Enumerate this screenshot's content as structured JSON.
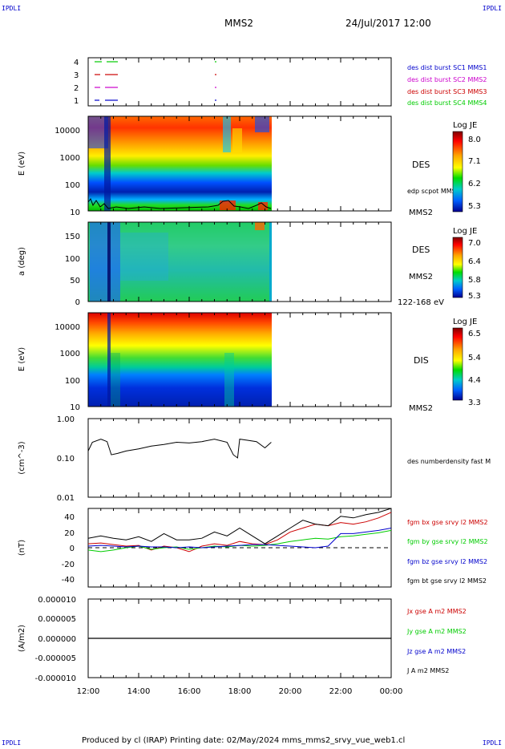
{
  "header": {
    "corner_tl": "IPDLI",
    "corner_tr": "IPDLI",
    "corner_bl": "IPDLI",
    "corner_br": "IPDLI",
    "title": "MMS2",
    "date": "24/Jul/2017 12:00"
  },
  "footer": {
    "text": "Produced by cl (IRAP)   Printing date: 02/May/2024   mms_mms2_srvy_vue_web1.cl"
  },
  "x_axis": {
    "ticks": [
      "12:00",
      "14:00",
      "16:00",
      "18:00",
      "20:00",
      "22:00",
      "00:00"
    ]
  },
  "colors": {
    "red": "#cc0000",
    "green": "#00cc00",
    "blue": "#0000cc",
    "magenta": "#cc00cc",
    "black": "#000000"
  },
  "chart_data": [
    {
      "type": "table",
      "panel": "availability",
      "y_ticks": [
        "4",
        "3",
        "2",
        "1"
      ],
      "legend": [
        {
          "label": "des dist burst SC1 MMS1",
          "color": "#0000cc"
        },
        {
          "label": "des dist burst SC2 MMS2",
          "color": "#cc00cc"
        },
        {
          "label": "des dist burst SC3 MMS3",
          "color": "#cc0000"
        },
        {
          "label": "des dist burst SC4 MMS4",
          "color": "#00cc00"
        }
      ]
    },
    {
      "type": "heatmap",
      "panel": "des-energy",
      "ylabel": "E (eV)",
      "y_ticks": [
        "10000",
        "1000",
        "100",
        "10"
      ],
      "label": "DES",
      "sublabel": "MMS2",
      "overlay_label": "edp scpot MMS2",
      "colorbar": {
        "title": "Log JE",
        "ticks": [
          "8.0",
          "7.1",
          "6.2",
          "5.3"
        ]
      },
      "data_end": "19:15"
    },
    {
      "type": "heatmap",
      "panel": "des-pitch",
      "ylabel": "a (deg)",
      "y_ticks": [
        "150",
        "100",
        "50",
        "0"
      ],
      "label": "DES",
      "sublabel": "MMS2",
      "energy_band": "122-168 eV",
      "colorbar": {
        "title": "Log JE",
        "ticks": [
          "7.0",
          "6.4",
          "5.8",
          "5.3"
        ]
      },
      "data_end": "19:15"
    },
    {
      "type": "heatmap",
      "panel": "dis-energy",
      "ylabel": "E (eV)",
      "y_ticks": [
        "10000",
        "1000",
        "100",
        "10"
      ],
      "label": "DIS",
      "sublabel": "MMS2",
      "colorbar": {
        "title": "Log JE",
        "ticks": [
          "6.5",
          "5.4",
          "4.4",
          "3.3"
        ]
      },
      "data_end": "19:15"
    },
    {
      "type": "line",
      "panel": "density",
      "ylabel": "(cm^-3)",
      "y_ticks": [
        "1.00",
        "0.10",
        "0.01"
      ],
      "ylim": [
        0.01,
        1.0
      ],
      "scale": "log",
      "series": [
        {
          "name": "des numberdensity fast M",
          "color": "#000000",
          "x": [
            "12:00",
            "12:10",
            "12:30",
            "12:45",
            "12:55",
            "13:10",
            "13:30",
            "14:00",
            "14:30",
            "15:00",
            "15:30",
            "16:00",
            "16:30",
            "17:00",
            "17:30",
            "17:45",
            "17:55",
            "18:00",
            "18:20",
            "18:40",
            "19:00",
            "19:15"
          ],
          "y": [
            0.15,
            0.25,
            0.3,
            0.26,
            0.12,
            0.13,
            0.15,
            0.17,
            0.2,
            0.22,
            0.25,
            0.24,
            0.26,
            0.3,
            0.25,
            0.12,
            0.1,
            0.3,
            0.28,
            0.26,
            0.18,
            0.25
          ]
        }
      ]
    },
    {
      "type": "line",
      "panel": "fgm",
      "ylabel": "(nT)",
      "y_ticks": [
        "40",
        "20",
        "0",
        "-20",
        "-40"
      ],
      "ylim": [
        -50,
        50
      ],
      "series": [
        {
          "name": "fgm bx gse srvy l2 MMS2",
          "color": "#cc0000",
          "x": [
            "12:00",
            "12:30",
            "13:00",
            "13:30",
            "14:00",
            "14:30",
            "15:00",
            "15:30",
            "16:00",
            "16:30",
            "17:00",
            "17:30",
            "18:00",
            "18:30",
            "19:00",
            "19:30",
            "20:00",
            "20:30",
            "21:00",
            "21:30",
            "22:00",
            "22:30",
            "23:00",
            "23:30",
            "00:00"
          ],
          "y": [
            5,
            6,
            4,
            2,
            3,
            -3,
            2,
            0,
            -5,
            2,
            5,
            3,
            8,
            5,
            4,
            10,
            20,
            25,
            30,
            28,
            32,
            30,
            33,
            38,
            45
          ]
        },
        {
          "name": "fgm by gse srvy l2 MMS2",
          "color": "#00cc00",
          "x": [
            "12:00",
            "12:30",
            "13:00",
            "13:30",
            "14:00",
            "14:30",
            "15:00",
            "15:30",
            "16:00",
            "16:30",
            "17:00",
            "17:30",
            "18:00",
            "18:30",
            "19:00",
            "19:30",
            "20:00",
            "20:30",
            "21:00",
            "21:30",
            "22:00",
            "22:30",
            "23:00",
            "23:30",
            "00:00"
          ],
          "y": [
            -3,
            -5,
            -3,
            0,
            2,
            -2,
            0,
            1,
            -2,
            0,
            2,
            1,
            3,
            2,
            3,
            5,
            8,
            10,
            12,
            11,
            14,
            15,
            17,
            19,
            22
          ]
        },
        {
          "name": "fgm bz gse srvy l2 MMS2",
          "color": "#0000cc",
          "x": [
            "12:00",
            "12:30",
            "13:00",
            "13:30",
            "14:00",
            "14:30",
            "15:00",
            "15:30",
            "16:00",
            "16:30",
            "17:00",
            "17:30",
            "18:00",
            "18:30",
            "19:00",
            "19:30",
            "20:00",
            "20:30",
            "21:00",
            "21:30",
            "22:00",
            "22:30",
            "23:00",
            "23:30",
            "00:00"
          ],
          "y": [
            2,
            3,
            2,
            1,
            2,
            1,
            1,
            0,
            1,
            0,
            1,
            2,
            3,
            4,
            4,
            3,
            2,
            1,
            0,
            2,
            18,
            18,
            20,
            22,
            25
          ]
        },
        {
          "name": "fgm bt gse srvy l2 MMS2",
          "color": "#000000",
          "x": [
            "12:00",
            "12:30",
            "13:00",
            "13:30",
            "14:00",
            "14:30",
            "15:00",
            "15:30",
            "16:00",
            "16:30",
            "17:00",
            "17:30",
            "18:00",
            "18:30",
            "19:00",
            "19:30",
            "20:00",
            "20:30",
            "21:00",
            "21:30",
            "22:00",
            "22:30",
            "23:00",
            "23:30",
            "00:00"
          ],
          "y": [
            12,
            15,
            12,
            10,
            14,
            8,
            18,
            10,
            10,
            12,
            20,
            15,
            25,
            15,
            5,
            15,
            25,
            35,
            30,
            28,
            40,
            38,
            42,
            45,
            50
          ]
        }
      ]
    },
    {
      "type": "line",
      "panel": "current",
      "ylabel": "(A/m2)",
      "y_ticks": [
        "0.000010",
        "0.000005",
        "0.000000",
        "-0.000005",
        "-0.000010"
      ],
      "ylim": [
        -1e-05,
        1e-05
      ],
      "series": [
        {
          "name": "Jx gse A m2 MMS2",
          "color": "#cc0000",
          "x": [
            "12:00",
            "00:00"
          ],
          "y": [
            0,
            0
          ]
        },
        {
          "name": "Jy gse A m2 MMS2",
          "color": "#00cc00",
          "x": [
            "12:00",
            "00:00"
          ],
          "y": [
            0,
            0
          ]
        },
        {
          "name": "Jz gse A m2 MMS2",
          "color": "#0000cc",
          "x": [
            "12:00",
            "00:00"
          ],
          "y": [
            0,
            0
          ]
        },
        {
          "name": "J A m2 MMS2",
          "color": "#000000",
          "x": [
            "12:00",
            "00:00"
          ],
          "y": [
            0,
            0
          ]
        }
      ]
    }
  ]
}
